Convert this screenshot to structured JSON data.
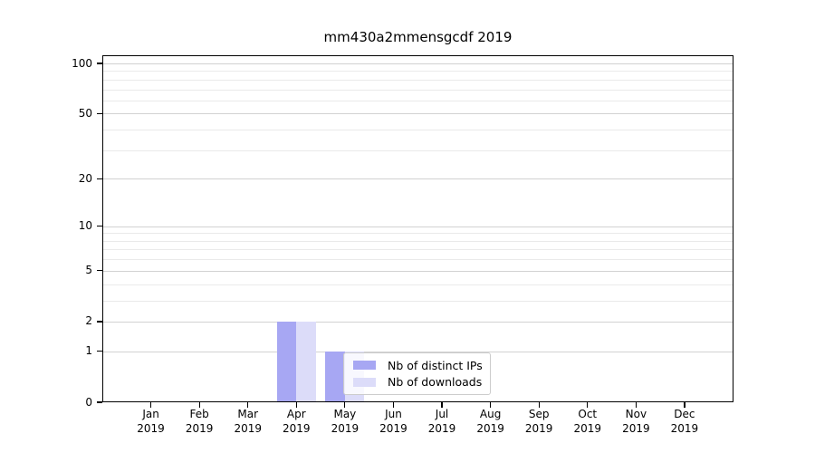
{
  "chart_data": {
    "type": "bar",
    "title": "mm430a2mmensgcdf 2019",
    "categories": [
      "Jan",
      "Feb",
      "Mar",
      "Apr",
      "May",
      "Jun",
      "Jul",
      "Aug",
      "Sep",
      "Oct",
      "Nov",
      "Dec"
    ],
    "x_sub_label": "2019",
    "series": [
      {
        "name": "Nb of distinct IPs",
        "color": "#a7a7f3",
        "values": [
          0,
          0,
          0,
          2,
          1,
          0,
          0,
          0,
          0,
          0,
          0,
          0
        ]
      },
      {
        "name": "Nb of downloads",
        "color": "#dcdcf9",
        "values": [
          0,
          0,
          0,
          2,
          1,
          0,
          0,
          0,
          0,
          0,
          0,
          0
        ]
      }
    ],
    "yscale": "log1p",
    "y_major_ticks": [
      0,
      1,
      2,
      5,
      10,
      20,
      50,
      100
    ],
    "y_minor_ticks": [
      3,
      4,
      6,
      7,
      8,
      9,
      30,
      40,
      60,
      70,
      80,
      90
    ],
    "ylim": [
      0,
      112
    ],
    "grid": "both",
    "legend_position": "inside lower-center",
    "colors": {
      "axis": "#000000",
      "grid_major": "#d2d2d2",
      "grid_minor": "#eaeaea",
      "legend_border": "#cccccc"
    }
  }
}
